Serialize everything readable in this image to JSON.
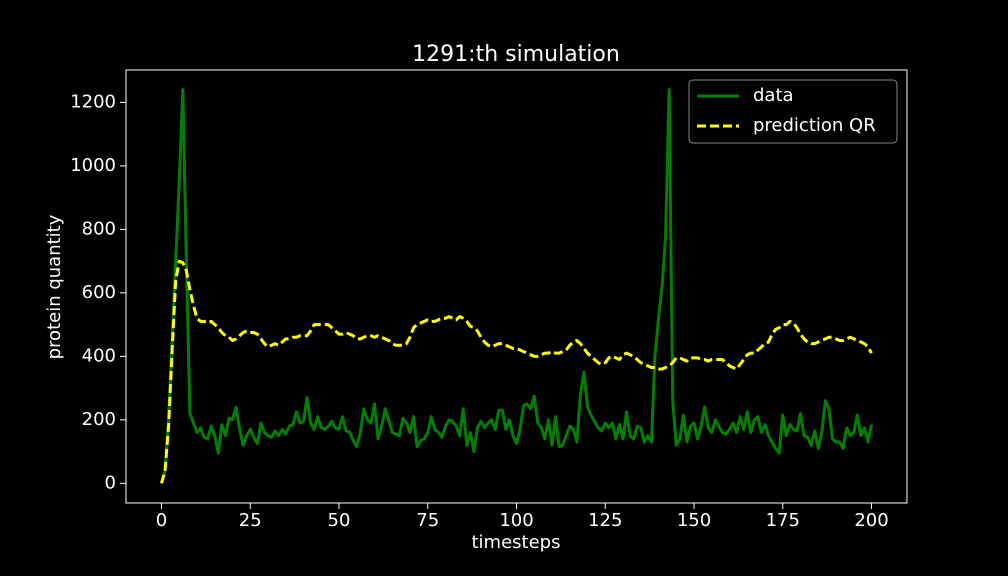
{
  "chart_data": {
    "type": "line",
    "title": "1291:th simulation",
    "x_label": "timesteps",
    "y_label": "protein quantity",
    "x": [
      0,
      1,
      2,
      3,
      4,
      5,
      6,
      7,
      8,
      9,
      10,
      11,
      12,
      13,
      14,
      15,
      16,
      17,
      18,
      19,
      20,
      21,
      22,
      23,
      24,
      25,
      26,
      27,
      28,
      29,
      30,
      31,
      32,
      33,
      34,
      35,
      36,
      37,
      38,
      39,
      40,
      41,
      42,
      43,
      44,
      45,
      46,
      47,
      48,
      49,
      50,
      51,
      52,
      53,
      54,
      55,
      56,
      57,
      58,
      59,
      60,
      61,
      62,
      63,
      64,
      65,
      66,
      67,
      68,
      69,
      70,
      71,
      72,
      73,
      74,
      75,
      76,
      77,
      78,
      79,
      80,
      81,
      82,
      83,
      84,
      85,
      86,
      87,
      88,
      89,
      90,
      91,
      92,
      93,
      94,
      95,
      96,
      97,
      98,
      99,
      100,
      101,
      102,
      103,
      104,
      105,
      106,
      107,
      108,
      109,
      110,
      111,
      112,
      113,
      114,
      115,
      116,
      117,
      118,
      119,
      120,
      121,
      122,
      123,
      124,
      125,
      126,
      127,
      128,
      129,
      130,
      131,
      132,
      133,
      134,
      135,
      136,
      137,
      138,
      139,
      140,
      141,
      142,
      143,
      144,
      145,
      146,
      147,
      148,
      149,
      150,
      151,
      152,
      153,
      154,
      155,
      156,
      157,
      158,
      159,
      160,
      161,
      162,
      163,
      164,
      165,
      166,
      167,
      168,
      169,
      170,
      171,
      172,
      173,
      174,
      175,
      176,
      177,
      178,
      179,
      180,
      181,
      182,
      183,
      184,
      185,
      186,
      187,
      188,
      189,
      190,
      191,
      192,
      193,
      194,
      195,
      196,
      197,
      198,
      199,
      200
    ],
    "series": [
      {
        "name": "data",
        "color": "#008000",
        "dash": false,
        "values": [
          0,
          40,
          200,
          450,
          700,
          950,
          1240,
          700,
          220,
          190,
          160,
          175,
          145,
          140,
          180,
          150,
          95,
          185,
          150,
          205,
          200,
          240,
          170,
          120,
          150,
          170,
          145,
          125,
          190,
          160,
          150,
          145,
          165,
          150,
          170,
          155,
          180,
          185,
          225,
          190,
          195,
          270,
          190,
          170,
          210,
          175,
          170,
          180,
          195,
          175,
          170,
          210,
          165,
          160,
          135,
          115,
          160,
          235,
          200,
          190,
          250,
          140,
          180,
          235,
          200,
          160,
          155,
          150,
          205,
          190,
          160,
          210,
          115,
          135,
          140,
          160,
          210,
          170,
          160,
          145,
          180,
          200,
          195,
          180,
          150,
          235,
          120,
          160,
          100,
          175,
          195,
          175,
          190,
          200,
          170,
          230,
          230,
          170,
          200,
          150,
          125,
          170,
          245,
          250,
          235,
          275,
          190,
          175,
          140,
          200,
          120,
          210,
          115,
          120,
          150,
          180,
          170,
          130,
          280,
          350,
          240,
          215,
          195,
          175,
          165,
          190,
          175,
          190,
          140,
          185,
          140,
          225,
          150,
          140,
          180,
          175,
          130,
          150,
          130,
          400,
          520,
          620,
          780,
          1240,
          260,
          120,
          140,
          215,
          130,
          180,
          190,
          140,
          180,
          240,
          175,
          160,
          200,
          180,
          160,
          155,
          170,
          190,
          160,
          210,
          170,
          225,
          160,
          200,
          210,
          160,
          185,
          150,
          130,
          110,
          95,
          215,
          150,
          185,
          170,
          165,
          220,
          150,
          145,
          120,
          165,
          110,
          160,
          260,
          235,
          140,
          130,
          130,
          110,
          175,
          150,
          160,
          215,
          150,
          175,
          130,
          185
        ]
      },
      {
        "name": "prediction QR",
        "color": "#ffff00",
        "dash": true,
        "values": [
          0,
          40,
          180,
          420,
          640,
          700,
          695,
          670,
          610,
          560,
          520,
          510,
          510,
          505,
          510,
          500,
          490,
          475,
          465,
          460,
          450,
          455,
          465,
          475,
          480,
          475,
          475,
          470,
          455,
          440,
          430,
          435,
          440,
          435,
          445,
          455,
          455,
          460,
          460,
          465,
          465,
          465,
          480,
          500,
          500,
          500,
          500,
          500,
          490,
          480,
          470,
          470,
          475,
          470,
          465,
          455,
          455,
          460,
          465,
          465,
          460,
          465,
          460,
          455,
          450,
          440,
          435,
          435,
          435,
          440,
          460,
          490,
          500,
          505,
          510,
          515,
          510,
          510,
          515,
          520,
          520,
          525,
          520,
          515,
          525,
          520,
          510,
          495,
          490,
          480,
          460,
          445,
          435,
          430,
          435,
          440,
          440,
          435,
          430,
          425,
          425,
          420,
          415,
          410,
          405,
          400,
          400,
          405,
          410,
          410,
          415,
          410,
          410,
          415,
          420,
          435,
          445,
          450,
          440,
          425,
          410,
          400,
          390,
          380,
          375,
          380,
          395,
          400,
          395,
          390,
          405,
          410,
          405,
          400,
          390,
          380,
          375,
          370,
          365,
          365,
          360,
          360,
          365,
          370,
          380,
          395,
          395,
          390,
          385,
          395,
          395,
          395,
          390,
          390,
          385,
          390,
          390,
          390,
          390,
          380,
          370,
          365,
          360,
          375,
          390,
          405,
          410,
          410,
          420,
          430,
          440,
          445,
          470,
          485,
          490,
          500,
          500,
          510,
          505,
          490,
          470,
          455,
          445,
          440,
          440,
          445,
          450,
          455,
          460,
          460,
          455,
          450,
          450,
          455,
          460,
          455,
          450,
          445,
          440,
          430,
          410
        ]
      }
    ],
    "xlim": [
      -10,
      210
    ],
    "xticks": [
      0,
      25,
      50,
      75,
      100,
      125,
      150,
      175,
      200
    ],
    "ylim": [
      -62,
      1302
    ],
    "yticks": [
      0,
      200,
      400,
      600,
      800,
      1000,
      1200
    ],
    "grid": false,
    "legend": "upper right"
  }
}
